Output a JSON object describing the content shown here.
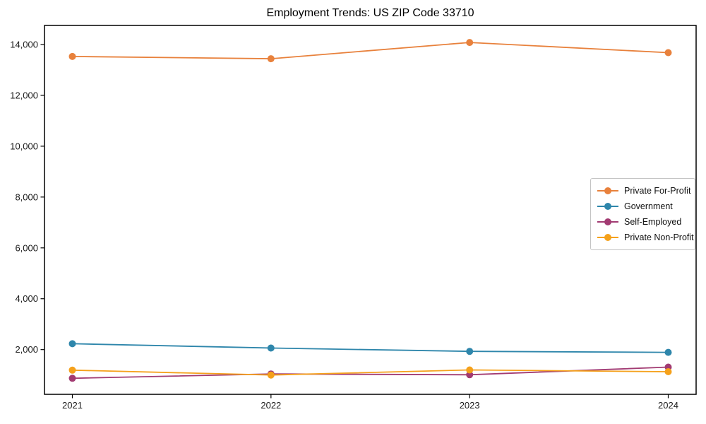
{
  "chart_data": {
    "type": "line",
    "title": "Employment Trends: US ZIP Code 33710",
    "xlabel": "",
    "ylabel": "",
    "categories": [
      "2021",
      "2022",
      "2023",
      "2024"
    ],
    "series": [
      {
        "name": "Private For-Profit",
        "color": "#E8813C",
        "values": [
          13530,
          13440,
          14080,
          13680
        ]
      },
      {
        "name": "Government",
        "color": "#2E86AB",
        "values": [
          2230,
          2060,
          1930,
          1890
        ]
      },
      {
        "name": "Self-Employed",
        "color": "#A23B72",
        "values": [
          870,
          1040,
          1010,
          1310
        ]
      },
      {
        "name": "Private Non-Profit",
        "color": "#F5A11B",
        "values": [
          1190,
          1000,
          1200,
          1130
        ]
      }
    ],
    "ylim": [
      240,
      14750
    ],
    "yticks": [
      2000,
      4000,
      6000,
      8000,
      10000,
      12000,
      14000
    ],
    "ytick_labels": [
      "2,000",
      "4,000",
      "6,000",
      "8,000",
      "10,000",
      "12,000",
      "14,000"
    ],
    "grid": false,
    "legend_position": "middle-right",
    "marker": "circle"
  }
}
